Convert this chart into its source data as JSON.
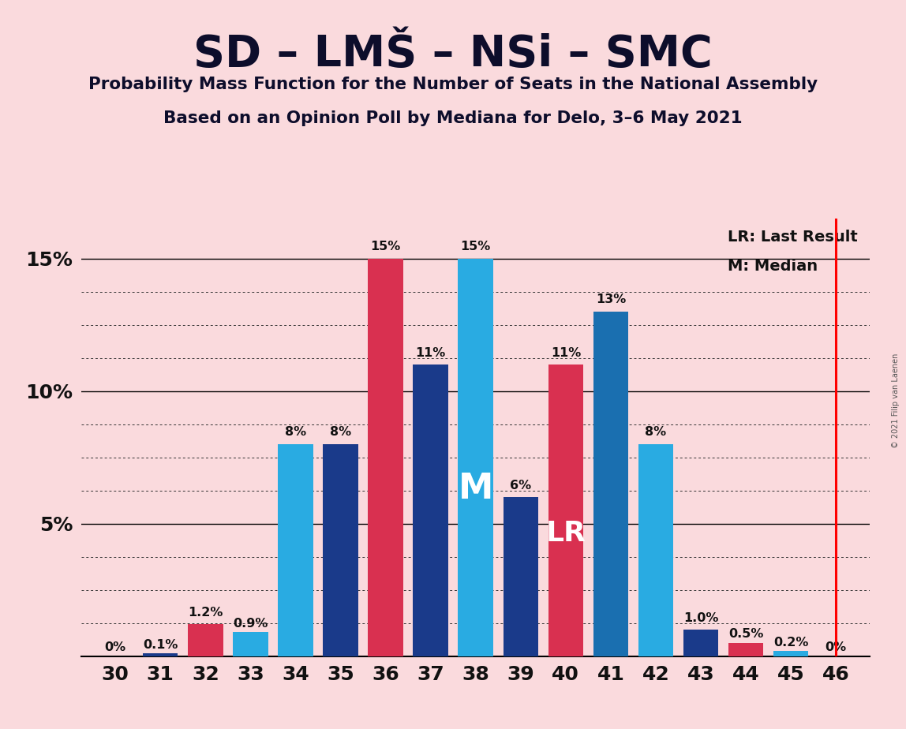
{
  "title": "SD – LMŠ – NSi – SMC",
  "subtitle1": "Probability Mass Function for the Number of Seats in the National Assembly",
  "subtitle2": "Based on an Opinion Poll by Mediana for Delo, 3–6 May 2021",
  "copyright": "© 2021 Filip van Laenen",
  "seats": [
    30,
    31,
    32,
    33,
    34,
    35,
    36,
    37,
    38,
    39,
    40,
    41,
    42,
    43,
    44,
    45,
    46
  ],
  "values": [
    0.0,
    0.1,
    1.2,
    0.9,
    8.0,
    8.0,
    15.0,
    11.0,
    15.0,
    6.0,
    11.0,
    13.0,
    8.0,
    1.0,
    0.5,
    0.2,
    0.0
  ],
  "labels": [
    "0%",
    "0.1%",
    "1.2%",
    "0.9%",
    "8%",
    "8%",
    "15%",
    "11%",
    "15%",
    "6%",
    "11%",
    "13%",
    "8%",
    "1.0%",
    "0.5%",
    "0.2%",
    "0%"
  ],
  "bar_colors": [
    "#29ABE2",
    "#1A3A8A",
    "#D93050",
    "#29ABE2",
    "#29ABE2",
    "#1A3A8A",
    "#D93050",
    "#1A3A8A",
    "#29ABE2",
    "#1A3A8A",
    "#D93050",
    "#1A6FB0",
    "#29ABE2",
    "#1A3A8A",
    "#D93050",
    "#29ABE2",
    "#1A3A8A"
  ],
  "median_seat": 38,
  "lr_seat": 40,
  "lr_line_seat": 46,
  "background_color": "#FADADD",
  "ylim_max": 16.5,
  "label_fontsize": 11.5,
  "bar_width": 0.78,
  "m_fontsize": 32,
  "lr_fontsize": 26,
  "grid_dotted_levels": [
    1.25,
    2.5,
    3.75,
    6.25,
    7.5,
    8.75,
    11.25,
    12.5,
    13.75
  ],
  "solid_levels": [
    5.0,
    10.0,
    15.0
  ],
  "ytick_labels": [
    "5%",
    "10%",
    "15%"
  ],
  "ytick_vals": [
    5,
    10,
    15
  ],
  "legend_lr_text": "LR: Last Result",
  "legend_m_text": "M: Median"
}
